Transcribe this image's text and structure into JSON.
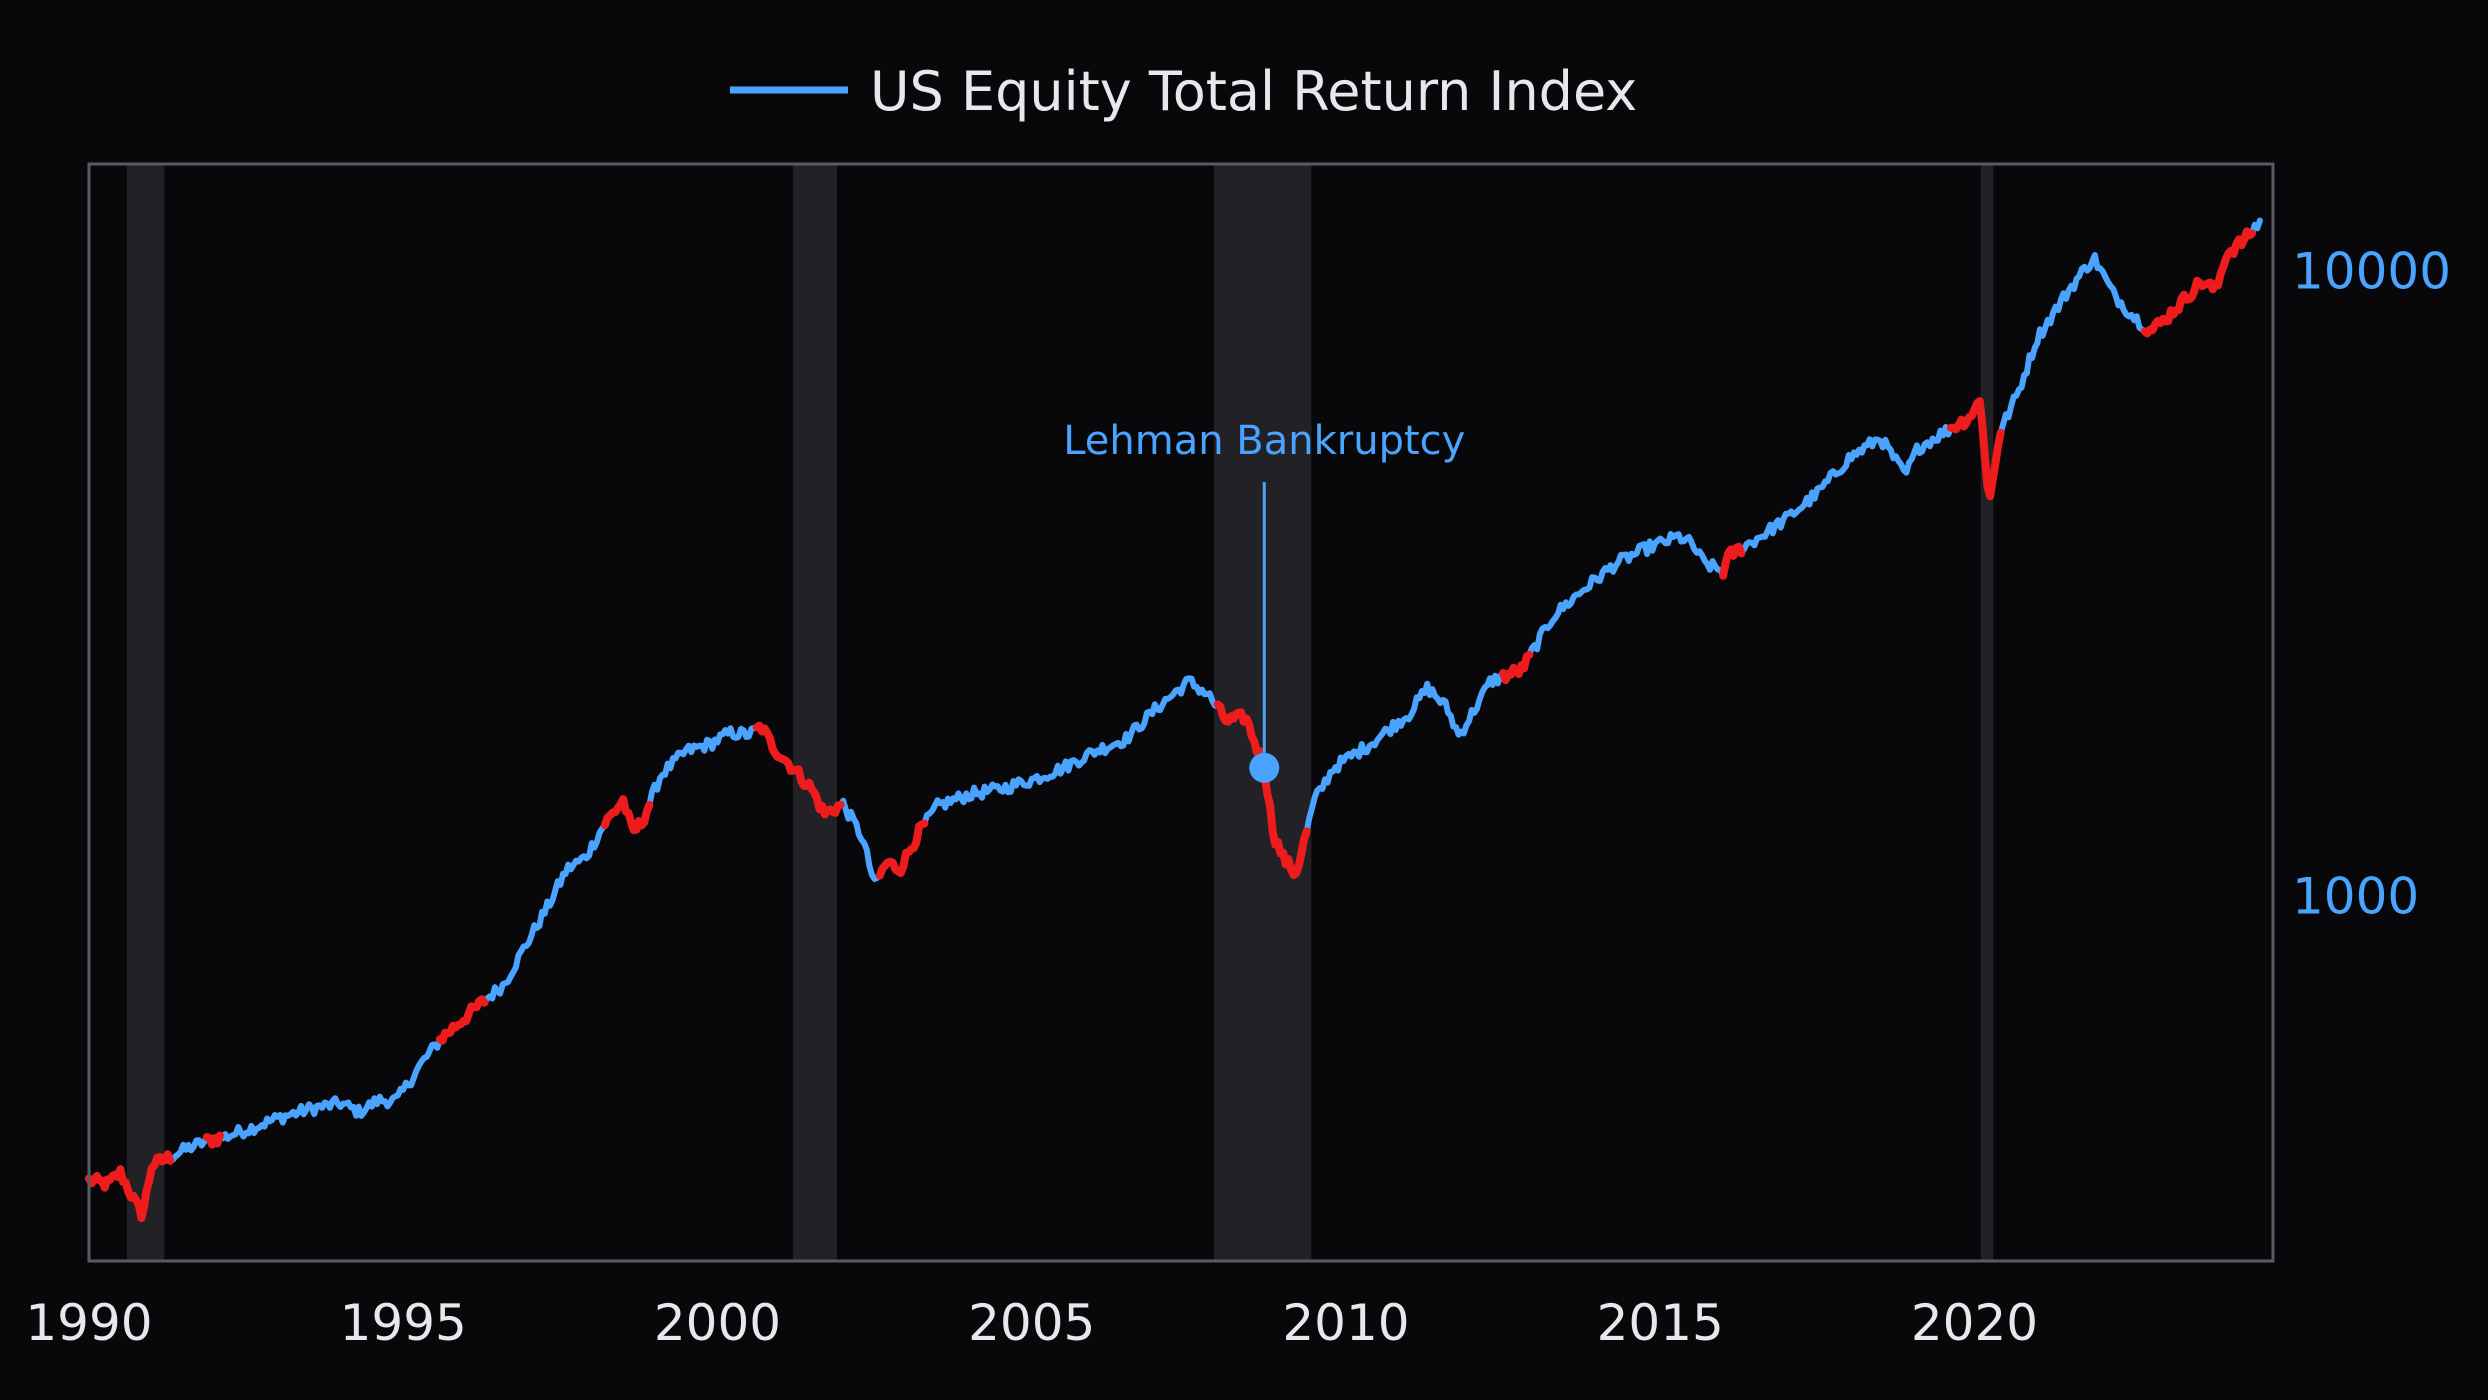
{
  "chart_data": {
    "type": "line",
    "title": "",
    "xlabel": "",
    "ylabel": "",
    "y_scale": "log",
    "xlim": [
      1990.0,
      2024.75
    ],
    "ylim": [
      260,
      14800
    ],
    "x_ticks": [
      "1990",
      "1995",
      "2000",
      "2005",
      "2010",
      "2015",
      "2020"
    ],
    "y_ticks": [
      "1000",
      "10000"
    ],
    "y_axis_position": "right",
    "grid": false,
    "legend": {
      "position": "top-center",
      "label": "US Equity Total Return Index"
    },
    "colors": {
      "series": "#4aa3ff",
      "highlight": "#ee1c1c",
      "recession": "#222226",
      "axis": "#5a5a62",
      "background": "#08080b"
    },
    "recessions": [
      {
        "start": 1990.6,
        "end": 1991.2
      },
      {
        "start": 2001.2,
        "end": 2001.9
      },
      {
        "start": 2007.9,
        "end": 2009.45
      },
      {
        "start": 2020.1,
        "end": 2020.3
      }
    ],
    "series": [
      {
        "name": "US Equity Total Return Index",
        "x": [
          1990.0,
          1990.3,
          1990.5,
          1990.75,
          1990.85,
          1991.0,
          1991.3,
          1991.6,
          1991.9,
          1992.2,
          1992.6,
          1993.0,
          1993.5,
          1994.0,
          1994.3,
          1994.6,
          1994.9,
          1995.3,
          1995.6,
          1996.0,
          1996.3,
          1996.6,
          1997.0,
          1997.3,
          1997.6,
          1997.9,
          1998.2,
          1998.5,
          1998.65,
          1998.8,
          1999.1,
          1999.5,
          1999.9,
          2000.2,
          2000.5,
          2000.7,
          2000.9,
          2001.2,
          2001.5,
          2001.7,
          2002.0,
          2002.3,
          2002.5,
          2002.7,
          2002.9,
          2003.2,
          2003.5,
          2004.0,
          2004.5,
          2005.0,
          2005.5,
          2006.0,
          2006.5,
          2007.0,
          2007.5,
          2007.8,
          2008.1,
          2008.4,
          2008.7,
          2008.85,
          2009.0,
          2009.2,
          2009.5,
          2009.8,
          2010.2,
          2010.4,
          2010.7,
          2011.0,
          2011.3,
          2011.6,
          2011.8,
          2012.3,
          2012.8,
          2013.3,
          2013.8,
          2014.3,
          2014.8,
          2015.3,
          2015.5,
          2015.7,
          2016.0,
          2016.1,
          2016.5,
          2017.0,
          2017.5,
          2018.0,
          2018.5,
          2018.9,
          2019.1,
          2019.5,
          2019.9,
          2020.1,
          2020.23,
          2020.4,
          2020.7,
          2021.0,
          2021.5,
          2021.9,
          2022.2,
          2022.5,
          2022.8,
          2023.0,
          2023.3,
          2023.6,
          2023.85,
          2024.0,
          2024.3,
          2024.55
        ],
        "y": [
          350,
          345,
          360,
          320,
          308,
          370,
          382,
          395,
          405,
          412,
          425,
          440,
          455,
          465,
          450,
          470,
          470,
          540,
          590,
          640,
          680,
          720,
          850,
          960,
          1100,
          1150,
          1300,
          1420,
          1260,
          1310,
          1560,
          1700,
          1750,
          1820,
          1810,
          1860,
          1720,
          1600,
          1480,
          1350,
          1400,
          1240,
          1040,
          1130,
          1100,
          1260,
          1390,
          1450,
          1480,
          1530,
          1600,
          1700,
          1780,
          2000,
          2200,
          2100,
          1900,
          1930,
          1600,
          1250,
          1150,
          1080,
          1420,
          1600,
          1700,
          1750,
          1850,
          1950,
          2150,
          2000,
          1800,
          2200,
          2300,
          2800,
          3100,
          3400,
          3600,
          3750,
          3650,
          3400,
          3300,
          3500,
          3700,
          4000,
          4400,
          5000,
          5400,
          4700,
          5200,
          5500,
          5800,
          6200,
          4200,
          5500,
          6400,
          7800,
          9300,
          10500,
          9200,
          8500,
          8000,
          8300,
          8900,
          9600,
          9300,
          10600,
          11200,
          12000
        ]
      }
    ],
    "highlight_ranges": [
      [
        1990.0,
        1991.3
      ],
      [
        1991.85,
        1992.1
      ],
      [
        1995.55,
        1996.3
      ],
      [
        1998.2,
        1998.95
      ],
      [
        2000.6,
        2002.0
      ],
      [
        2002.55,
        2003.3
      ],
      [
        2007.95,
        2009.4
      ],
      [
        2012.5,
        2012.95
      ],
      [
        2016.0,
        2016.3
      ],
      [
        2019.6,
        2020.45
      ],
      [
        2022.7,
        2024.45
      ]
    ],
    "annotations": [
      {
        "label": "Lehman Bankruptcy",
        "x": 2008.7,
        "y": 1600
      }
    ]
  }
}
